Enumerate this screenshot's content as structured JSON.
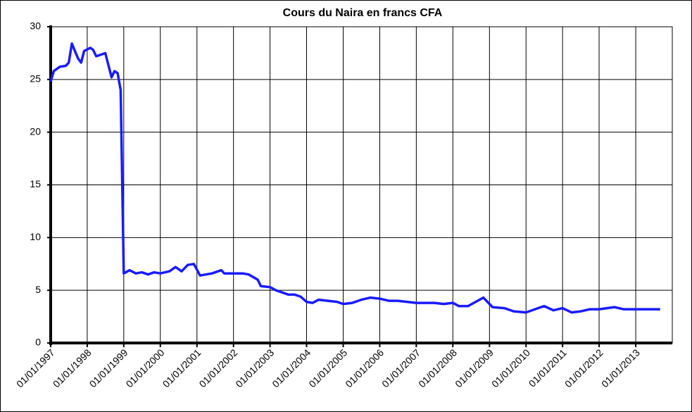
{
  "chart_data": {
    "type": "line",
    "title": "Cours du Naira en francs CFA",
    "x": [
      "1997-01-01",
      "1997-02-01",
      "1997-04-01",
      "1997-06-01",
      "1997-07-01",
      "1997-08-01",
      "1997-10-01",
      "1997-11-01",
      "1997-12-01",
      "1998-02-01",
      "1998-03-01",
      "1998-04-01",
      "1998-06-01",
      "1998-07-01",
      "1998-09-01",
      "1998-10-01",
      "1998-11-01",
      "1998-12-01",
      "1999-01-01",
      "1999-03-01",
      "1999-05-01",
      "1999-07-01",
      "1999-09-01",
      "1999-11-01",
      "2000-01-01",
      "2000-04-01",
      "2000-06-01",
      "2000-08-01",
      "2000-10-01",
      "2000-12-01",
      "2001-02-01",
      "2001-04-01",
      "2001-06-01",
      "2001-09-01",
      "2001-10-01",
      "2002-01-01",
      "2002-04-01",
      "2002-06-01",
      "2002-09-01",
      "2002-10-01",
      "2003-01-01",
      "2003-03-01",
      "2003-05-01",
      "2003-07-01",
      "2003-09-01",
      "2003-11-01",
      "2004-01-01",
      "2004-03-01",
      "2004-05-01",
      "2004-08-01",
      "2004-11-01",
      "2005-01-01",
      "2005-04-01",
      "2005-07-01",
      "2005-10-01",
      "2006-01-01",
      "2006-04-01",
      "2006-07-01",
      "2006-10-01",
      "2007-01-01",
      "2007-04-01",
      "2007-07-01",
      "2007-10-01",
      "2008-01-01",
      "2008-03-01",
      "2008-06-01",
      "2008-11-01",
      "2009-02-01",
      "2009-06-01",
      "2009-09-01",
      "2010-01-01",
      "2010-04-01",
      "2010-07-01",
      "2010-10-01",
      "2011-01-01",
      "2011-04-01",
      "2011-07-01",
      "2011-10-01",
      "2012-01-01",
      "2012-06-01",
      "2012-09-01",
      "2013-01-01",
      "2013-04-01",
      "2013-07-01",
      "2013-09-01"
    ],
    "series": [
      {
        "color": "#1a1aff",
        "values": [
          24.8,
          25.8,
          26.2,
          26.3,
          26.6,
          28.4,
          27.0,
          26.6,
          27.7,
          28.0,
          27.8,
          27.2,
          27.4,
          27.5,
          25.2,
          25.8,
          25.6,
          24.0,
          6.6,
          6.9,
          6.6,
          6.7,
          6.5,
          6.7,
          6.6,
          6.8,
          7.2,
          6.8,
          7.4,
          7.5,
          6.4,
          6.5,
          6.6,
          6.9,
          6.6,
          6.6,
          6.6,
          6.5,
          6.0,
          5.4,
          5.3,
          5.0,
          4.8,
          4.6,
          4.6,
          4.4,
          3.9,
          3.8,
          4.1,
          4.0,
          3.9,
          3.7,
          3.8,
          4.1,
          4.3,
          4.2,
          4.0,
          4.0,
          3.9,
          3.8,
          3.8,
          3.8,
          3.7,
          3.8,
          3.5,
          3.5,
          4.3,
          3.4,
          3.3,
          3.0,
          2.9,
          3.2,
          3.5,
          3.1,
          3.3,
          2.9,
          3.0,
          3.2,
          3.2,
          3.4,
          3.2,
          3.2,
          3.2,
          3.2,
          3.2
        ]
      }
    ],
    "xlim": [
      "1997-01-01",
      "2014-01-01"
    ],
    "xticks": [
      {
        "value": "1997-01-01",
        "label": "01/01/1997"
      },
      {
        "value": "1998-01-01",
        "label": "01/01/1998"
      },
      {
        "value": "1999-01-01",
        "label": "01/01/1999"
      },
      {
        "value": "2000-01-01",
        "label": "01/01/2000"
      },
      {
        "value": "2001-01-01",
        "label": "01/01/2001"
      },
      {
        "value": "2002-01-01",
        "label": "01/01/2002"
      },
      {
        "value": "2003-01-01",
        "label": "01/01/2003"
      },
      {
        "value": "2004-01-01",
        "label": "01/01/2004"
      },
      {
        "value": "2005-01-01",
        "label": "01/01/2005"
      },
      {
        "value": "2006-01-01",
        "label": "01/01/2006"
      },
      {
        "value": "2007-01-01",
        "label": "01/01/2007"
      },
      {
        "value": "2008-01-01",
        "label": "01/01/2008"
      },
      {
        "value": "2009-01-01",
        "label": "01/01/2009"
      },
      {
        "value": "2010-01-01",
        "label": "01/01/2010"
      },
      {
        "value": "2011-01-01",
        "label": "01/01/2011"
      },
      {
        "value": "2012-01-01",
        "label": "01/01/2012"
      },
      {
        "value": "2013-01-01",
        "label": "01/01/2013"
      }
    ],
    "ylim": [
      0,
      30
    ],
    "yticks": [
      0,
      5,
      10,
      15,
      20,
      25,
      30
    ],
    "grid": true
  }
}
